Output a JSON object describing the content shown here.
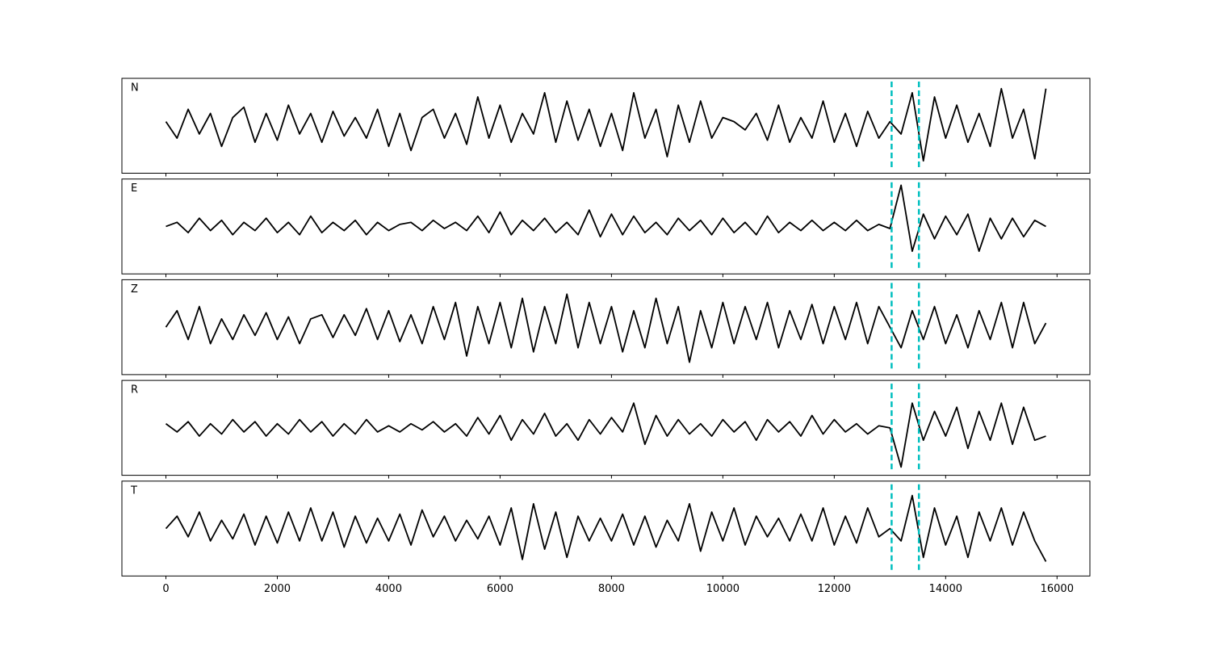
{
  "chart_data": {
    "type": "line",
    "color": "#000000",
    "xlim": [
      -790,
      16590
    ],
    "ylim": [
      -1.15,
      1.15
    ],
    "xticks": [
      0,
      2000,
      4000,
      6000,
      8000,
      10000,
      12000,
      14000,
      16000
    ],
    "vlines": [
      13030,
      13520
    ],
    "vline_color": "#00bfbf",
    "x": [
      0,
      200,
      400,
      600,
      800,
      1000,
      1200,
      1400,
      1600,
      1800,
      2000,
      2200,
      2400,
      2600,
      2800,
      3000,
      3200,
      3400,
      3600,
      3800,
      4000,
      4200,
      4400,
      4600,
      4800,
      5000,
      5200,
      5400,
      5600,
      5800,
      6000,
      6200,
      6400,
      6600,
      6800,
      7000,
      7200,
      7400,
      7600,
      7800,
      8000,
      8200,
      8400,
      8600,
      8800,
      9000,
      9200,
      9400,
      9600,
      9800,
      10000,
      10200,
      10400,
      10600,
      10800,
      11000,
      11200,
      11400,
      11600,
      11800,
      12000,
      12200,
      12400,
      12600,
      12800,
      13000,
      13200,
      13400,
      13600,
      13800,
      14000,
      14200,
      14400,
      14600,
      14800,
      15000,
      15200,
      15400,
      15600,
      15800
    ],
    "panels": [
      {
        "label": "N",
        "values": [
          0.1,
          -0.3,
          0.4,
          -0.2,
          0.3,
          -0.5,
          0.2,
          0.45,
          -0.4,
          0.3,
          -0.35,
          0.5,
          -0.2,
          0.3,
          -0.4,
          0.35,
          -0.25,
          0.2,
          -0.3,
          0.4,
          -0.5,
          0.3,
          -0.6,
          0.2,
          0.4,
          -0.3,
          0.3,
          -0.45,
          0.7,
          -0.3,
          0.5,
          -0.4,
          0.3,
          -0.2,
          0.8,
          -0.4,
          0.6,
          -0.35,
          0.4,
          -0.5,
          0.3,
          -0.6,
          0.8,
          -0.3,
          0.4,
          -0.75,
          0.5,
          -0.4,
          0.6,
          -0.3,
          0.2,
          0.1,
          -0.1,
          0.3,
          -0.35,
          0.5,
          -0.4,
          0.2,
          -0.3,
          0.6,
          -0.4,
          0.3,
          -0.5,
          0.35,
          -0.3,
          0.1,
          -0.2,
          0.8,
          -0.85,
          0.7,
          -0.3,
          0.5,
          -0.4,
          0.3,
          -0.5,
          0.9,
          -0.3,
          0.4,
          -0.8,
          0.9
        ]
      },
      {
        "label": "E",
        "values": [
          0.0,
          0.1,
          -0.15,
          0.2,
          -0.1,
          0.15,
          -0.2,
          0.1,
          -0.1,
          0.2,
          -0.15,
          0.1,
          -0.2,
          0.25,
          -0.15,
          0.1,
          -0.1,
          0.15,
          -0.2,
          0.1,
          -0.1,
          0.05,
          0.1,
          -0.1,
          0.15,
          -0.05,
          0.1,
          -0.1,
          0.25,
          -0.15,
          0.35,
          -0.2,
          0.15,
          -0.1,
          0.2,
          -0.15,
          0.1,
          -0.2,
          0.4,
          -0.25,
          0.3,
          -0.2,
          0.25,
          -0.15,
          0.1,
          -0.2,
          0.2,
          -0.1,
          0.15,
          -0.2,
          0.2,
          -0.15,
          0.1,
          -0.2,
          0.25,
          -0.15,
          0.1,
          -0.1,
          0.15,
          -0.1,
          0.1,
          -0.1,
          0.15,
          -0.1,
          0.05,
          -0.05,
          1.0,
          -0.6,
          0.3,
          -0.3,
          0.25,
          -0.2,
          0.3,
          -0.6,
          0.2,
          -0.3,
          0.2,
          -0.25,
          0.15,
          0.0
        ]
      },
      {
        "label": "Z",
        "values": [
          0.0,
          0.4,
          -0.3,
          0.5,
          -0.4,
          0.2,
          -0.3,
          0.3,
          -0.2,
          0.35,
          -0.3,
          0.25,
          -0.4,
          0.2,
          0.3,
          -0.25,
          0.3,
          -0.2,
          0.45,
          -0.3,
          0.4,
          -0.35,
          0.3,
          -0.4,
          0.5,
          -0.3,
          0.6,
          -0.7,
          0.5,
          -0.4,
          0.6,
          -0.5,
          0.7,
          -0.6,
          0.5,
          -0.4,
          0.8,
          -0.5,
          0.6,
          -0.4,
          0.5,
          -0.6,
          0.4,
          -0.5,
          0.7,
          -0.4,
          0.5,
          -0.85,
          0.4,
          -0.5,
          0.6,
          -0.4,
          0.5,
          -0.3,
          0.6,
          -0.5,
          0.4,
          -0.3,
          0.55,
          -0.4,
          0.5,
          -0.3,
          0.6,
          -0.4,
          0.5,
          0.0,
          -0.5,
          0.4,
          -0.3,
          0.5,
          -0.4,
          0.3,
          -0.5,
          0.4,
          -0.3,
          0.6,
          -0.5,
          0.6,
          -0.4,
          0.1
        ]
      },
      {
        "label": "R",
        "values": [
          0.1,
          -0.1,
          0.15,
          -0.2,
          0.1,
          -0.15,
          0.2,
          -0.1,
          0.15,
          -0.2,
          0.1,
          -0.15,
          0.2,
          -0.1,
          0.15,
          -0.2,
          0.1,
          -0.15,
          0.2,
          -0.1,
          0.05,
          -0.1,
          0.1,
          -0.05,
          0.15,
          -0.1,
          0.1,
          -0.2,
          0.25,
          -0.15,
          0.3,
          -0.3,
          0.2,
          -0.15,
          0.35,
          -0.2,
          0.1,
          -0.3,
          0.2,
          -0.15,
          0.25,
          -0.1,
          0.6,
          -0.4,
          0.3,
          -0.2,
          0.2,
          -0.15,
          0.1,
          -0.2,
          0.2,
          -0.1,
          0.15,
          -0.3,
          0.2,
          -0.1,
          0.15,
          -0.2,
          0.3,
          -0.15,
          0.2,
          -0.1,
          0.1,
          -0.15,
          0.05,
          0.0,
          -0.95,
          0.6,
          -0.3,
          0.4,
          -0.2,
          0.5,
          -0.5,
          0.4,
          -0.3,
          0.6,
          -0.4,
          0.5,
          -0.3,
          -0.2
        ]
      },
      {
        "label": "T",
        "values": [
          0.0,
          0.3,
          -0.2,
          0.4,
          -0.3,
          0.2,
          -0.25,
          0.35,
          -0.4,
          0.3,
          -0.35,
          0.4,
          -0.3,
          0.5,
          -0.3,
          0.4,
          -0.45,
          0.3,
          -0.35,
          0.25,
          -0.3,
          0.35,
          -0.4,
          0.45,
          -0.2,
          0.3,
          -0.3,
          0.2,
          -0.25,
          0.3,
          -0.4,
          0.5,
          -0.75,
          0.6,
          -0.5,
          0.4,
          -0.7,
          0.3,
          -0.3,
          0.25,
          -0.3,
          0.35,
          -0.4,
          0.3,
          -0.45,
          0.2,
          -0.3,
          0.6,
          -0.55,
          0.4,
          -0.3,
          0.5,
          -0.4,
          0.3,
          -0.2,
          0.25,
          -0.3,
          0.35,
          -0.3,
          0.5,
          -0.4,
          0.3,
          -0.35,
          0.5,
          -0.2,
          0.0,
          -0.3,
          0.8,
          -0.7,
          0.5,
          -0.4,
          0.3,
          -0.7,
          0.4,
          -0.3,
          0.5,
          -0.4,
          0.4,
          -0.3,
          -0.8
        ]
      }
    ]
  }
}
